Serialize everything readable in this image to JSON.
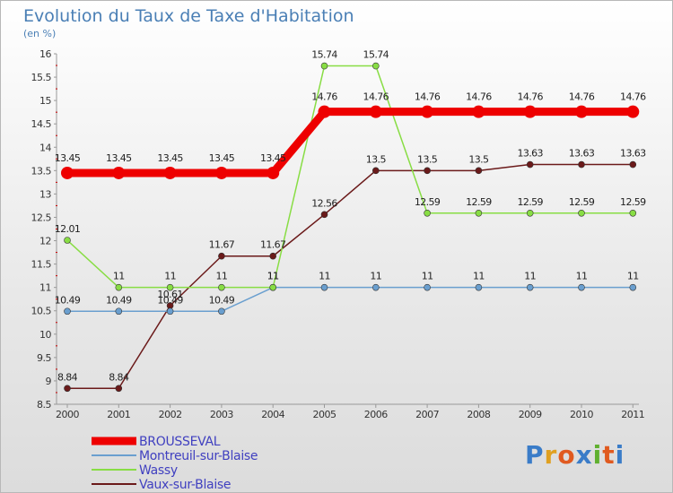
{
  "chart_data": {
    "type": "line",
    "title": "Evolution du Taux de Taxe d'Habitation",
    "subtitle": "(en %)",
    "categories": [
      "2000",
      "2001",
      "2002",
      "2003",
      "2004",
      "2005",
      "2006",
      "2007",
      "2008",
      "2009",
      "2010",
      "2011"
    ],
    "ylim": [
      8.5,
      16
    ],
    "yticks": [
      "8.5",
      "9",
      "9.5",
      "10",
      "10.5",
      "11",
      "11.5",
      "12",
      "12.5",
      "13",
      "13.5",
      "14",
      "14.5",
      "15",
      "15.5",
      "16"
    ],
    "series": [
      {
        "name": "BROUSSEVAL",
        "color": "#ee0000",
        "labels": [
          "13.45",
          "13.45",
          "13.45",
          "13.45",
          "13.45",
          "14.76",
          "14.76",
          "14.76",
          "14.76",
          "14.76",
          "14.76",
          "14.76"
        ],
        "values": [
          13.45,
          13.45,
          13.45,
          13.45,
          13.45,
          14.76,
          14.76,
          14.76,
          14.76,
          14.76,
          14.76,
          14.76
        ]
      },
      {
        "name": "Montreuil-sur-Blaise",
        "color": "#6a9fcf",
        "labels": [
          "10.49",
          "10.49",
          "10.49",
          "10.49",
          "11",
          "11",
          "11",
          "11",
          "11",
          "11",
          "11",
          "11"
        ],
        "values": [
          10.49,
          10.49,
          10.49,
          10.49,
          11,
          11,
          11,
          11,
          11,
          11,
          11,
          11
        ]
      },
      {
        "name": "Wassy",
        "color": "#88dd44",
        "labels": [
          "12.01",
          "11",
          "11",
          "11",
          "11",
          "15.74",
          "15.74",
          "12.59",
          "12.59",
          "12.59",
          "12.59",
          "12.59"
        ],
        "values": [
          12.01,
          11,
          11,
          11,
          11,
          15.74,
          15.74,
          12.59,
          12.59,
          12.59,
          12.59,
          12.59
        ]
      },
      {
        "name": "Vaux-sur-Blaise",
        "color": "#6b1a1a",
        "labels": [
          "8.84",
          "8.84",
          "10.61",
          "11.67",
          "11.67",
          "12.56",
          "13.5",
          "13.5",
          "13.5",
          "13.63",
          "13.63",
          "13.63"
        ],
        "values": [
          8.84,
          8.84,
          10.61,
          11.67,
          11.67,
          12.56,
          13.5,
          13.5,
          13.5,
          13.63,
          13.63,
          13.63
        ]
      }
    ]
  },
  "logo": {
    "text": "Proxiti",
    "letters": [
      "P",
      "r",
      "o",
      "x",
      "i",
      "t",
      "i"
    ],
    "colors": [
      "#3a7cc8",
      "#e0a020",
      "#e05a20",
      "#3a7cc8",
      "#60b030",
      "#e05a20",
      "#3a7cc8"
    ]
  }
}
